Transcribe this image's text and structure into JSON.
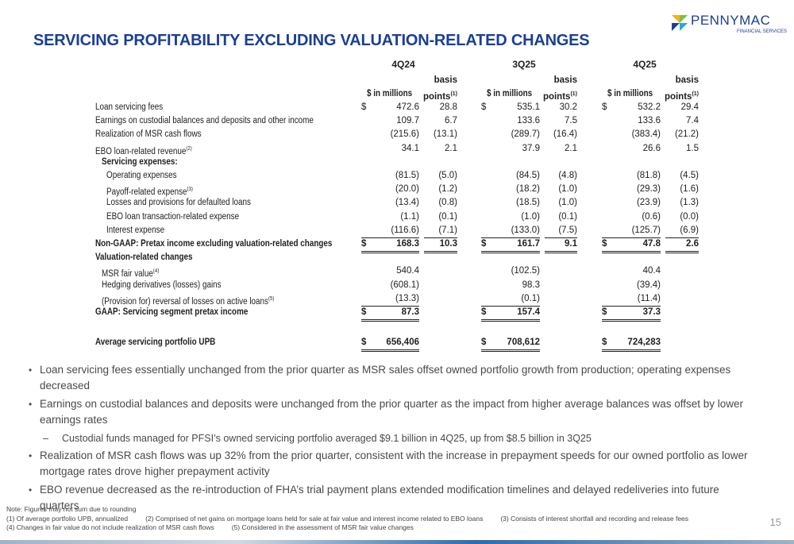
{
  "logo": {
    "name": "PENNYMAC",
    "tagline": "FINANCIAL SERVICES"
  },
  "title": "SERVICING PROFITABILITY EXCLUDING VALUATION-RELATED CHANGES",
  "table": {
    "periods": [
      "4Q24",
      "3Q25",
      "4Q25"
    ],
    "amount_header": "$ in millions",
    "bps_header_line1": "basis",
    "bps_header_line2": "points",
    "bps_header_note": "(1)",
    "currency": "$",
    "rows": [
      {
        "label": "Loan servicing fees",
        "cells": [
          "472.6",
          "28.8",
          "535.1",
          "30.2",
          "532.2",
          "29.4"
        ]
      },
      {
        "label": "Earnings on custodial balances and deposits and other income",
        "cells": [
          "109.7",
          "6.7",
          "133.6",
          "7.5",
          "133.6",
          "7.4"
        ]
      },
      {
        "label": "Realization of MSR cash flows",
        "cells": [
          "(215.6)",
          "(13.1)",
          "(289.7)",
          "(16.4)",
          "(383.4)",
          "(21.2)"
        ]
      },
      {
        "label": "EBO loan-related revenue",
        "note": "(2)",
        "cells": [
          "34.1",
          "2.1",
          "37.9",
          "2.1",
          "26.6",
          "1.5"
        ]
      },
      {
        "label": "Servicing expenses:"
      },
      {
        "label": "Operating expenses",
        "cells": [
          "(81.5)",
          "(5.0)",
          "(84.5)",
          "(4.8)",
          "(81.8)",
          "(4.5)"
        ]
      },
      {
        "label": "Payoff-related expense",
        "note": "(3)",
        "cells": [
          "(20.0)",
          "(1.2)",
          "(18.2)",
          "(1.0)",
          "(29.3)",
          "(1.6)"
        ]
      },
      {
        "label": "Losses and provisions for defaulted loans",
        "cells": [
          "(13.4)",
          "(0.8)",
          "(18.5)",
          "(1.0)",
          "(23.9)",
          "(1.3)"
        ]
      },
      {
        "label": "EBO loan transaction-related expense",
        "cells": [
          "(1.1)",
          "(0.1)",
          "(1.0)",
          "(0.1)",
          "(0.6)",
          "(0.0)"
        ]
      },
      {
        "label": "Interest expense",
        "cells": [
          "(116.6)",
          "(7.1)",
          "(133.0)",
          "(7.5)",
          "(125.7)",
          "(6.9)"
        ]
      },
      {
        "label": "Non-GAAP: Pretax income excluding valuation-related changes",
        "cells": [
          "168.3",
          "10.3",
          "161.7",
          "9.1",
          "47.8",
          "2.6"
        ]
      },
      {
        "label": "Valuation-related changes"
      },
      {
        "label": "MSR fair value",
        "note": "(4)",
        "cells": [
          "540.4",
          null,
          "(102.5)",
          null,
          "40.4",
          null
        ]
      },
      {
        "label": "Hedging derivatives (losses) gains",
        "cells": [
          "(608.1)",
          null,
          "98.3",
          null,
          "(39.4)",
          null
        ]
      },
      {
        "label": "(Provision for) reversal of losses on active loans",
        "note": "(5)",
        "cells": [
          "(13.3)",
          null,
          "(0.1)",
          null,
          "(11.4)",
          null
        ]
      },
      {
        "label": "GAAP: Servicing segment pretax income",
        "cells": [
          "87.3",
          null,
          "157.4",
          null,
          "37.3",
          null
        ]
      },
      {
        "label": "Average servicing portfolio UPB",
        "cells": [
          "656,406",
          null,
          "708,612",
          null,
          "724,283",
          null
        ]
      }
    ]
  },
  "bullets": [
    {
      "text": "Loan servicing fees essentially unchanged from the prior quarter as MSR sales offset owned portfolio growth from production; operating expenses decreased"
    },
    {
      "text": "Earnings on custodial balances and deposits were unchanged from the prior quarter as the impact from higher average balances was offset by lower earnings rates",
      "subs": [
        "Custodial funds managed for PFSI’s owned servicing portfolio averaged $9.1 billion in 4Q25, up from $8.5 billion in 3Q25"
      ]
    },
    {
      "text": "Realization of MSR cash flows was up 32% from the prior quarter, consistent with the increase in prepayment speeds for our owned portfolio as lower mortgage rates drove higher prepayment activity"
    },
    {
      "text": "EBO revenue decreased as the re-introduction of FHA’s trial payment plans extended modification timelines and delayed redeliveries into future quarters"
    }
  ],
  "footnotes": [
    [
      "Note: Figures may not sum due to rounding"
    ],
    [
      "(1) Of average portfolio UPB, annualized",
      "(2) Comprised of net gains on mortgage loans held for sale at fair value and interest income related to EBO loans",
      "(3) Consists of interest shortfall and recording and release fees"
    ],
    [
      "(4) Changes in fair value do not include realization of MSR cash flows",
      "(5) Considered in the assessment of MSR fair value changes"
    ]
  ],
  "page_number": "15"
}
